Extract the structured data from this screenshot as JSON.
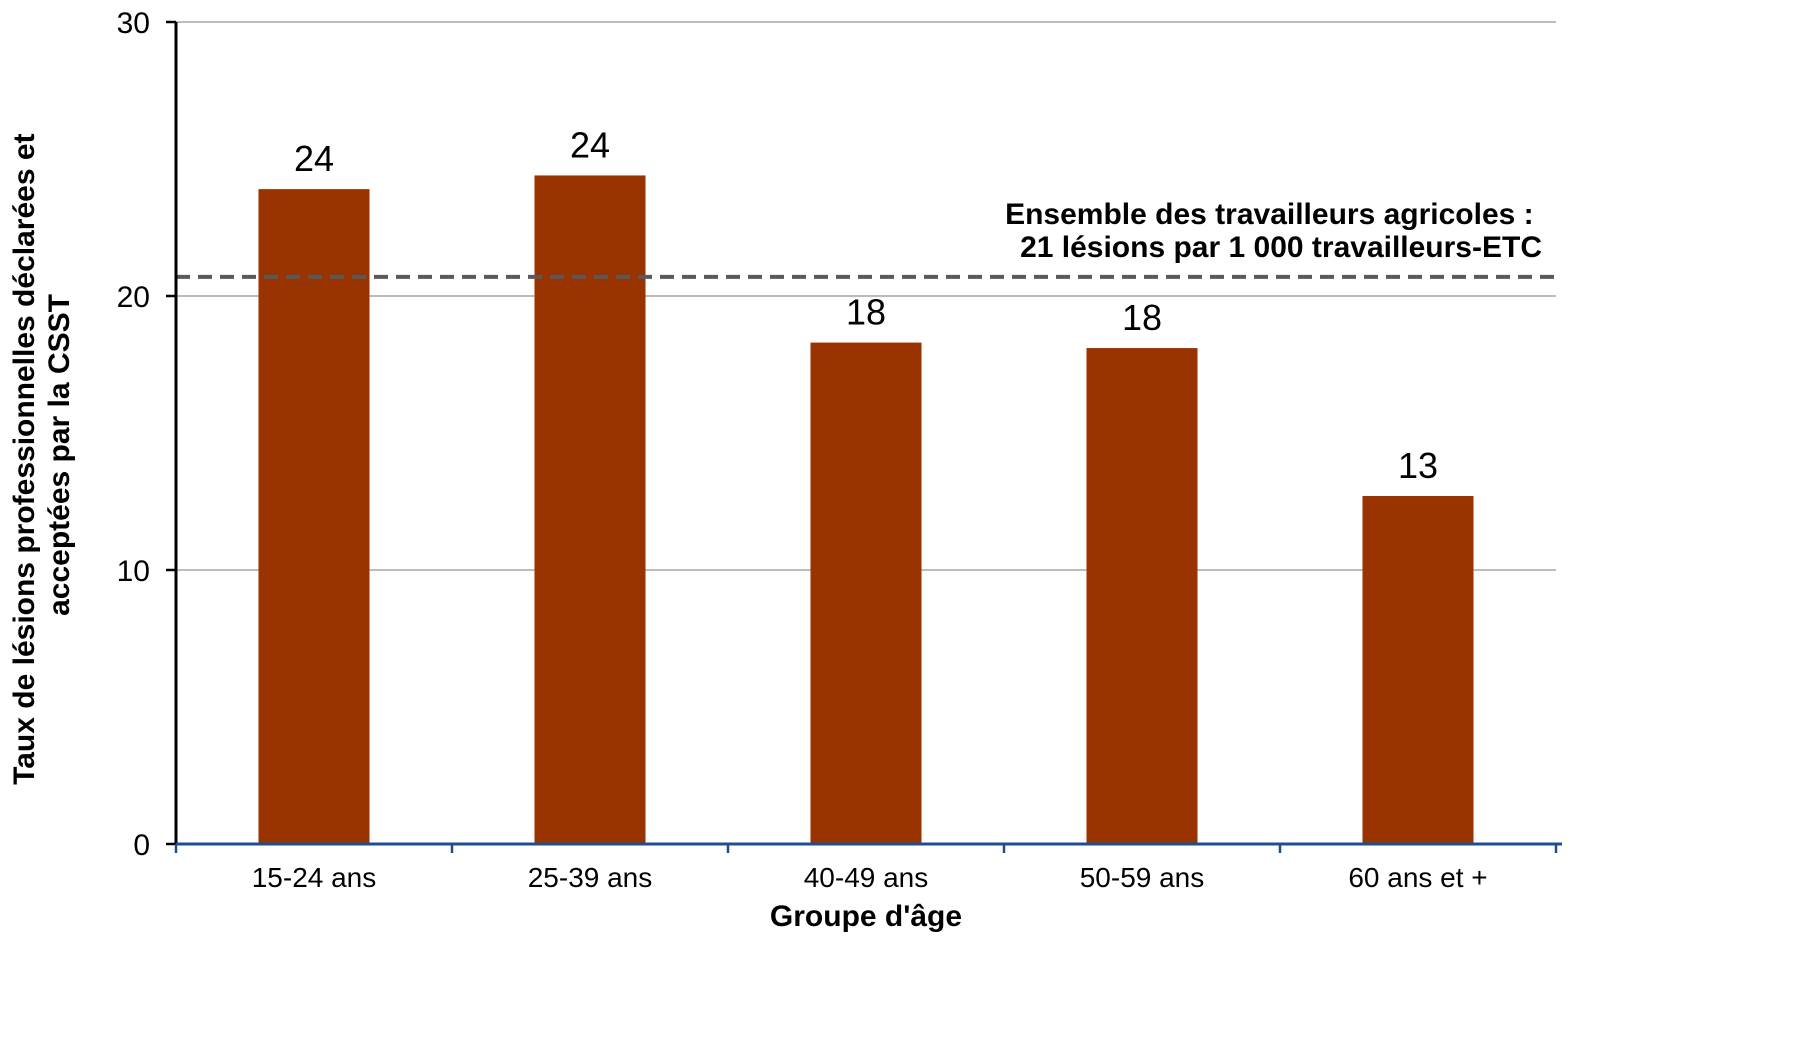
{
  "chart_data": {
    "type": "bar",
    "categories": [
      "15-24 ans",
      "25-39 ans",
      "40-49 ans",
      "50-59 ans",
      "60 ans et +"
    ],
    "values": [
      23.9,
      24.4,
      18.3,
      18.1,
      12.7
    ],
    "data_labels": [
      "24",
      "24",
      "18",
      "18",
      "13"
    ],
    "title": "",
    "xlabel": "Groupe d'âge",
    "ylabel_lines": [
      "Taux de lésions professionnelles déclarées et",
      "acceptées par la CSST"
    ],
    "ylim": [
      0,
      30
    ],
    "yticks": [
      0,
      10,
      20,
      30
    ],
    "grid": true,
    "legend": "none",
    "reference_line": {
      "value": 20.7,
      "style": "dashed",
      "label_lines": [
        "Ensemble des travailleurs agricoles :",
        "21 lésions par 1 000 travailleurs-ETC"
      ]
    },
    "colors": {
      "bar": "#993300",
      "grid": "#a6a6a6",
      "reference_line": "#595959",
      "x_axis": "#1f4e8c",
      "y_axis": "#000000"
    }
  }
}
